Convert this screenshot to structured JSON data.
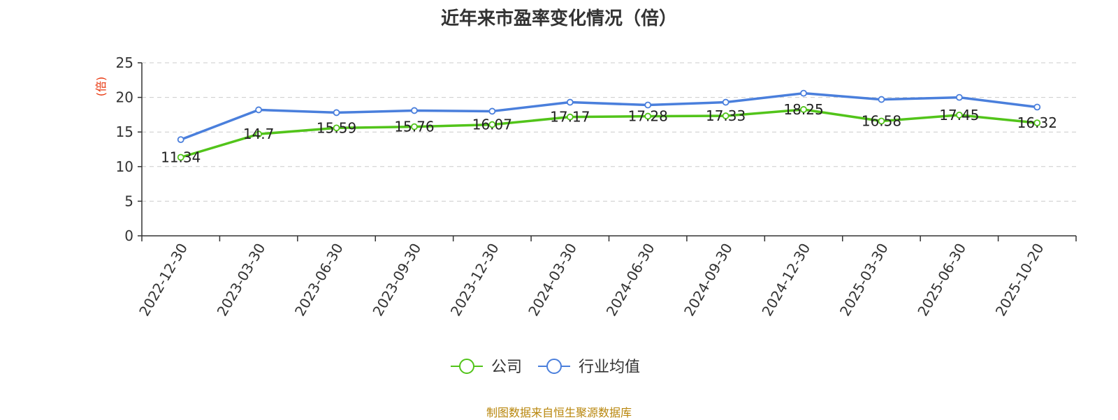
{
  "chart_data": {
    "type": "line",
    "title": "近年来市盈率变化情况（倍）",
    "ylabel": "(倍)",
    "ylim": [
      0,
      25
    ],
    "yticks": [
      "0",
      "5",
      "10",
      "15",
      "20",
      "25"
    ],
    "grid": true,
    "legend_position": "bottom",
    "categories": [
      "2022-12-30",
      "2023-03-30",
      "2023-06-30",
      "2023-09-30",
      "2023-12-30",
      "2024-03-30",
      "2024-06-30",
      "2024-09-30",
      "2024-12-30",
      "2025-03-30",
      "2025-06-30",
      "2025-10-20"
    ],
    "series": [
      {
        "name": "公司",
        "color": "#52c41a",
        "values": [
          11.34,
          14.7,
          15.59,
          15.76,
          16.07,
          17.17,
          17.28,
          17.33,
          18.25,
          16.58,
          17.45,
          16.32
        ],
        "labels": [
          "11.34",
          "14.7",
          "15.59",
          "15.76",
          "16.07",
          "17.17",
          "17.28",
          "17.33",
          "18.25",
          "16.58",
          "17.45",
          "16.32"
        ]
      },
      {
        "name": "行业均值",
        "color": "#4a7fdc",
        "values": [
          13.9,
          18.2,
          17.8,
          18.1,
          18.0,
          19.3,
          18.9,
          19.3,
          20.6,
          19.7,
          20.0,
          18.6
        ]
      }
    ]
  },
  "footer": {
    "text": "制图数据来自恒生聚源数据库",
    "color": "#b8860b"
  },
  "colors": {
    "unit_label": "#e8340b",
    "axis": "#333333",
    "grid": "#cccccc"
  }
}
